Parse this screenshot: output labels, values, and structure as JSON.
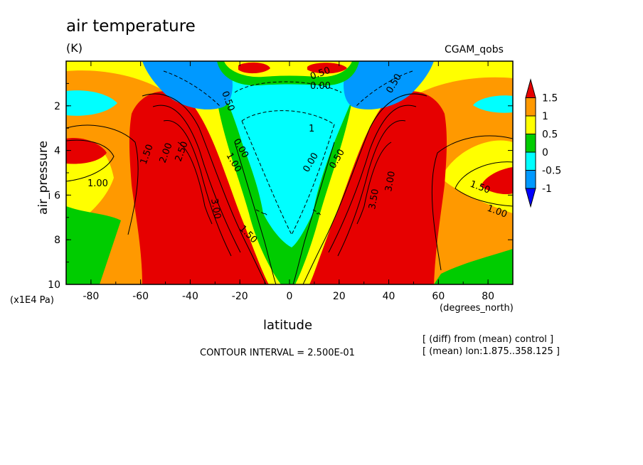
{
  "header": {
    "title": "air temperature",
    "units": "(K)",
    "dataset": "CGAM_qobs"
  },
  "footer": {
    "contour_interval": "CONTOUR INTERVAL = 2.500E-01",
    "note_diff": "[ (diff) from (mean) control ]",
    "note_mean": "[ (mean) lon:1.875..358.125 ]"
  },
  "chart_data": {
    "type": "heatmap",
    "subtype": "filled contour",
    "title": "air temperature",
    "units": "(K)",
    "xlabel": "latitude",
    "x_units": "(degrees_north)",
    "ylabel": "air_pressure",
    "y_units": "(x1E4 Pa)",
    "xlim": [
      -90,
      90
    ],
    "ylim": [
      10,
      0
    ],
    "x_ticks": [
      "-80",
      "-60",
      "-40",
      "-20",
      "0",
      "20",
      "40",
      "60",
      "80"
    ],
    "y_ticks": [
      "2",
      "4",
      "6",
      "8",
      "10"
    ],
    "contour_interval": 0.25,
    "colorbar": {
      "levels": [
        "1.5",
        "1",
        "0.5",
        "0",
        "-0.5",
        "-1"
      ],
      "colors": [
        "#e60000",
        "#ff9900",
        "#ffff00",
        "#00cc00",
        "#00ffff",
        "#0099ff",
        "#0000ff"
      ]
    },
    "contour_labels": [
      "1.00",
      "1.50",
      "2.00",
      "2.50",
      "3.00",
      "0.50",
      "0.00",
      "1.00",
      "1.50",
      "0.00",
      "0.50",
      "3.50",
      "3.00",
      "1.50",
      "1.00",
      "0.50",
      "0.50",
      "0.00",
      "1"
    ]
  }
}
